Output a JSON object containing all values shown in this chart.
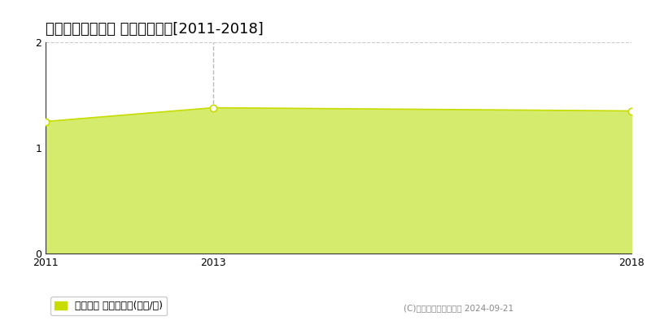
{
  "title": "大沼郡金山町中川 土地価格推移[2011-2018]",
  "years": [
    2011,
    2013,
    2018
  ],
  "values": [
    1.25,
    1.38,
    1.35
  ],
  "xlim": [
    2011,
    2018
  ],
  "ylim": [
    0,
    2
  ],
  "yticks": [
    0,
    1,
    2
  ],
  "xticks": [
    2011,
    2013,
    2018
  ],
  "fill_color": "#d4eb6e",
  "line_color": "#c8dc00",
  "line_width": 1.2,
  "marker_color": "white",
  "marker_edge_color": "#c8dc00",
  "marker_size": 6,
  "vline_x": 2013,
  "vline_color": "#bbbbbb",
  "vline_style": "--",
  "grid_color": "#cccccc",
  "grid_style": "--",
  "legend_label": "土地価格 平均坤単価(万円/坤)",
  "legend_color": "#c8dc00",
  "copyright_text": "(C)土地価格ドットコム 2024-09-21",
  "bg_color": "#ffffff",
  "title_fontsize": 13,
  "tick_fontsize": 9,
  "legend_fontsize": 9,
  "spine_color": "#333333"
}
